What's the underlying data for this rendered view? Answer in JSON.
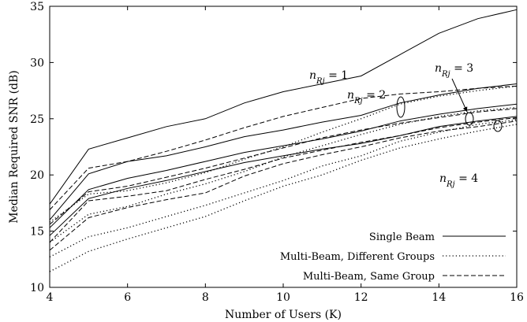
{
  "chart_data": {
    "type": "line",
    "title": "",
    "xlabel": "Number of Users (K)",
    "ylabel": "Median Required SNR (dB)",
    "xlim": [
      4,
      16
    ],
    "ylim": [
      10,
      35
    ],
    "xticks": [
      4,
      6,
      8,
      10,
      12,
      14,
      16
    ],
    "yticks": [
      10,
      15,
      20,
      25,
      30,
      35
    ],
    "grid": false,
    "legend_position": "bottom-right",
    "x": [
      4,
      5,
      6,
      7,
      8,
      9,
      10,
      11,
      12,
      13,
      14,
      15,
      16
    ],
    "legend": [
      {
        "label": "Single Beam",
        "style": "solid"
      },
      {
        "label": "Multi-Beam, Different Groups",
        "style": "dotted"
      },
      {
        "label": "Multi-Beam, Same Group",
        "style": "dashed"
      }
    ],
    "annotations": [
      "n_{Rj} = 1",
      "n_{Rj} = 2",
      "n_{Rj} = 3",
      "n_{Rj} = 4"
    ],
    "series": [
      {
        "scheme": "Single Beam",
        "n_Rj": 1,
        "style": "solid",
        "values": [
          17.4,
          22.3,
          23.3,
          24.3,
          25.0,
          26.4,
          27.4,
          28.1,
          28.8,
          30.7,
          32.6,
          33.9,
          34.7
        ]
      },
      {
        "scheme": "Single Beam",
        "n_Rj": 2,
        "style": "solid",
        "values": [
          16.0,
          20.1,
          21.2,
          21.7,
          22.5,
          23.4,
          24.0,
          24.7,
          25.3,
          26.4,
          27.1,
          27.7,
          28.1
        ]
      },
      {
        "scheme": "Single Beam",
        "n_Rj": 3,
        "style": "solid",
        "values": [
          15.3,
          18.7,
          19.7,
          20.4,
          21.2,
          22.0,
          22.6,
          23.2,
          23.9,
          24.8,
          25.4,
          25.9,
          26.3
        ]
      },
      {
        "scheme": "Single Beam",
        "n_Rj": 4,
        "style": "solid",
        "values": [
          14.6,
          17.9,
          18.8,
          19.5,
          20.3,
          21.1,
          21.7,
          22.3,
          22.8,
          23.5,
          24.3,
          24.8,
          25.2
        ]
      },
      {
        "scheme": "Multi-Beam, Same Group",
        "n_Rj": 1,
        "style": "dashed",
        "values": [
          16.9,
          20.6,
          21.2,
          22.1,
          23.1,
          24.2,
          25.2,
          26.0,
          26.8,
          27.2,
          27.4,
          27.7,
          27.9
        ]
      },
      {
        "scheme": "Multi-Beam, Same Group",
        "n_Rj": 2,
        "style": "dashed",
        "values": [
          15.6,
          18.5,
          19.0,
          19.8,
          20.6,
          21.5,
          22.4,
          23.3,
          24.0,
          24.6,
          25.1,
          25.6,
          25.9
        ]
      },
      {
        "scheme": "Multi-Beam, Same Group",
        "n_Rj": 3,
        "style": "dashed",
        "values": [
          14.0,
          17.7,
          18.1,
          18.6,
          19.6,
          20.5,
          21.5,
          22.2,
          22.9,
          23.5,
          24.2,
          24.7,
          25.1
        ]
      },
      {
        "scheme": "Multi-Beam, Same Group",
        "n_Rj": 4,
        "style": "dashed",
        "values": [
          13.3,
          16.2,
          17.1,
          17.8,
          18.4,
          19.9,
          21.0,
          21.8,
          22.5,
          23.3,
          23.9,
          24.3,
          24.8
        ]
      },
      {
        "scheme": "Multi-Beam, Different Groups",
        "n_Rj": 1,
        "style": "dotted",
        "values": [
          15.8,
          18.3,
          18.6,
          19.3,
          20.2,
          21.4,
          22.5,
          23.8,
          25.0,
          26.3,
          27.0,
          27.5,
          27.9
        ]
      },
      {
        "scheme": "Multi-Beam, Different Groups",
        "n_Rj": 2,
        "style": "dotted",
        "values": [
          14.0,
          16.5,
          17.2,
          18.3,
          19.2,
          20.3,
          21.6,
          22.6,
          23.6,
          24.5,
          25.2,
          25.7,
          26.0
        ]
      },
      {
        "scheme": "Multi-Beam, Different Groups",
        "n_Rj": 3,
        "style": "dotted",
        "values": [
          12.7,
          14.5,
          15.3,
          16.3,
          17.3,
          18.4,
          19.5,
          20.8,
          21.7,
          23.0,
          23.8,
          24.5,
          24.9
        ]
      },
      {
        "scheme": "Multi-Beam, Different Groups",
        "n_Rj": 4,
        "style": "dotted",
        "values": [
          11.4,
          13.2,
          14.3,
          15.3,
          16.3,
          17.7,
          19.0,
          20.0,
          21.3,
          22.4,
          23.2,
          23.9,
          24.5
        ]
      }
    ]
  }
}
